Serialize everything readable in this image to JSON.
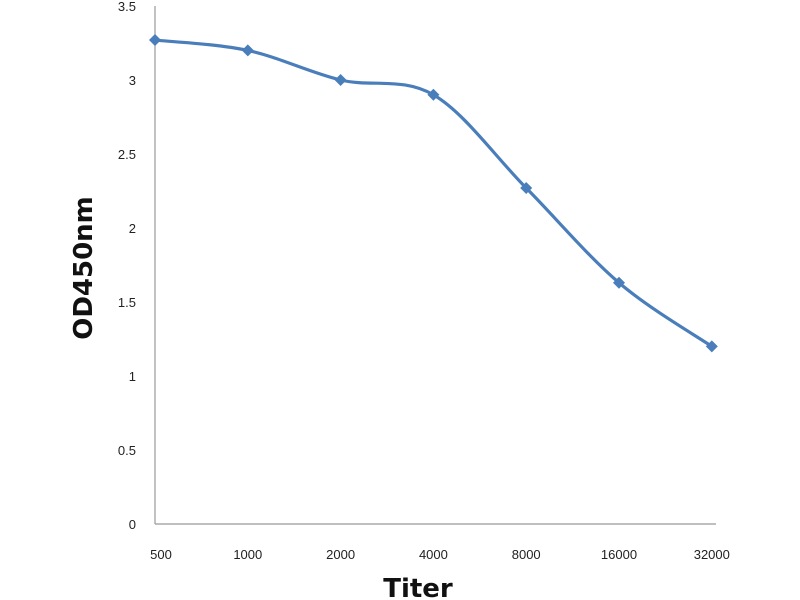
{
  "chart_data": {
    "type": "line",
    "title": "",
    "xlabel": "Titer",
    "ylabel": "OD450nm",
    "categories": [
      "500",
      "1000",
      "2000",
      "4000",
      "8000",
      "16000",
      "32000"
    ],
    "series": [
      {
        "values": [
          3.27,
          3.2,
          3.0,
          2.9,
          2.27,
          1.63,
          1.2
        ],
        "color": "#4a7ebb",
        "marker": "diamond",
        "smooth": true
      }
    ],
    "ylim": [
      0,
      3.5
    ],
    "yticks": [
      "0",
      "0.5",
      "1",
      "1.5",
      "2",
      "2.5",
      "3",
      "3.5"
    ],
    "grid": false,
    "legend": "none"
  }
}
